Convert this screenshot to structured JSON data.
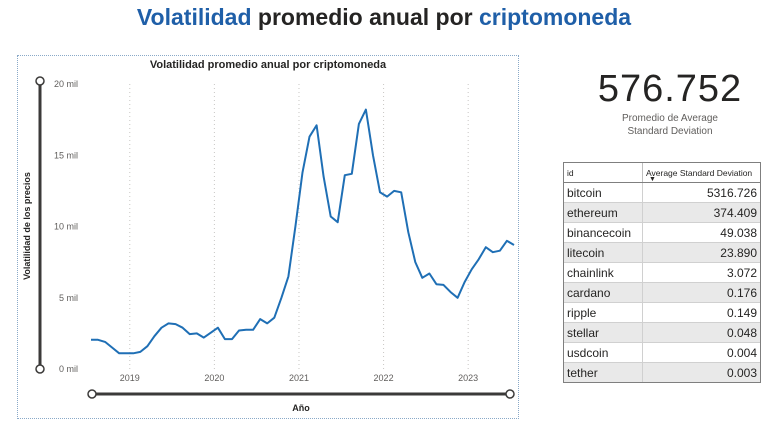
{
  "page": {
    "title_part1": "Volatilidad",
    "title_part2": " promedio anual por ",
    "title_part3": "criptomoneda"
  },
  "kpi": {
    "value": "576.752",
    "label_line1": "Promedio de Average",
    "label_line2": "Standard Deviation"
  },
  "table": {
    "headers": [
      "id",
      "Average Standard Deviation"
    ],
    "rows": [
      {
        "id": "bitcoin",
        "value": "5316.726"
      },
      {
        "id": "ethereum",
        "value": "374.409"
      },
      {
        "id": "binancecoin",
        "value": "49.038"
      },
      {
        "id": "litecoin",
        "value": "23.890"
      },
      {
        "id": "chainlink",
        "value": "3.072"
      },
      {
        "id": "cardano",
        "value": "0.176"
      },
      {
        "id": "ripple",
        "value": "0.149"
      },
      {
        "id": "stellar",
        "value": "0.048"
      },
      {
        "id": "usdcoin",
        "value": "0.004"
      },
      {
        "id": "tether",
        "value": "0.003"
      }
    ]
  },
  "colors": {
    "accent": "#1f5fa8",
    "line": "#1f6fb5",
    "row_alt": "#e9e9e9"
  },
  "chart_data": {
    "type": "line",
    "title": "Volatilidad promedio anual por criptomoneda",
    "xlabel": "Año",
    "ylabel": "Volatilidad de los precios",
    "x_tick_labels": [
      "2019",
      "2020",
      "2021",
      "2022",
      "2023"
    ],
    "y_tick_labels": [
      "0 mil",
      "5 mil",
      "10 mil",
      "15 mil",
      "20 mil"
    ],
    "ylim": [
      0,
      20000
    ],
    "xlim": [
      "2018-07",
      "2023-07"
    ],
    "grid": "vertical dotted",
    "series": [
      {
        "x": [
          "2018-07",
          "2018-08",
          "2018-09",
          "2018-10",
          "2018-11",
          "2018-12",
          "2019-01",
          "2019-02",
          "2019-03",
          "2019-04",
          "2019-05",
          "2019-06",
          "2019-07",
          "2019-08",
          "2019-09",
          "2019-10",
          "2019-11",
          "2019-12",
          "2020-01",
          "2020-02",
          "2020-03",
          "2020-04",
          "2020-05",
          "2020-06",
          "2020-07",
          "2020-08",
          "2020-09",
          "2020-10",
          "2020-11",
          "2020-12",
          "2021-01",
          "2021-02",
          "2021-03",
          "2021-04",
          "2021-05",
          "2021-06",
          "2021-07",
          "2021-08",
          "2021-09",
          "2021-10",
          "2021-11",
          "2021-12",
          "2022-01",
          "2022-02",
          "2022-03",
          "2022-04",
          "2022-05",
          "2022-06",
          "2022-07",
          "2022-08",
          "2022-09",
          "2022-10",
          "2022-11",
          "2022-12",
          "2023-01",
          "2023-02",
          "2023-03",
          "2023-04",
          "2023-05",
          "2023-06",
          "2023-07"
        ],
        "values": [
          2050,
          2050,
          1900,
          1500,
          1100,
          1100,
          1100,
          1200,
          1600,
          2300,
          2900,
          3200,
          3150,
          2900,
          2450,
          2500,
          2200,
          2550,
          2900,
          2100,
          2100,
          2700,
          2750,
          2750,
          3500,
          3200,
          3600,
          5000,
          6500,
          10000,
          13800,
          16300,
          17100,
          13500,
          10700,
          10300,
          13600,
          13700,
          17200,
          18200,
          15000,
          12400,
          12100,
          12500,
          12400,
          9600,
          7500,
          6400,
          6700,
          5950,
          5900,
          5400,
          5000,
          6100,
          7000,
          7700,
          8550,
          8200,
          8300,
          9000,
          8700
        ]
      }
    ]
  }
}
